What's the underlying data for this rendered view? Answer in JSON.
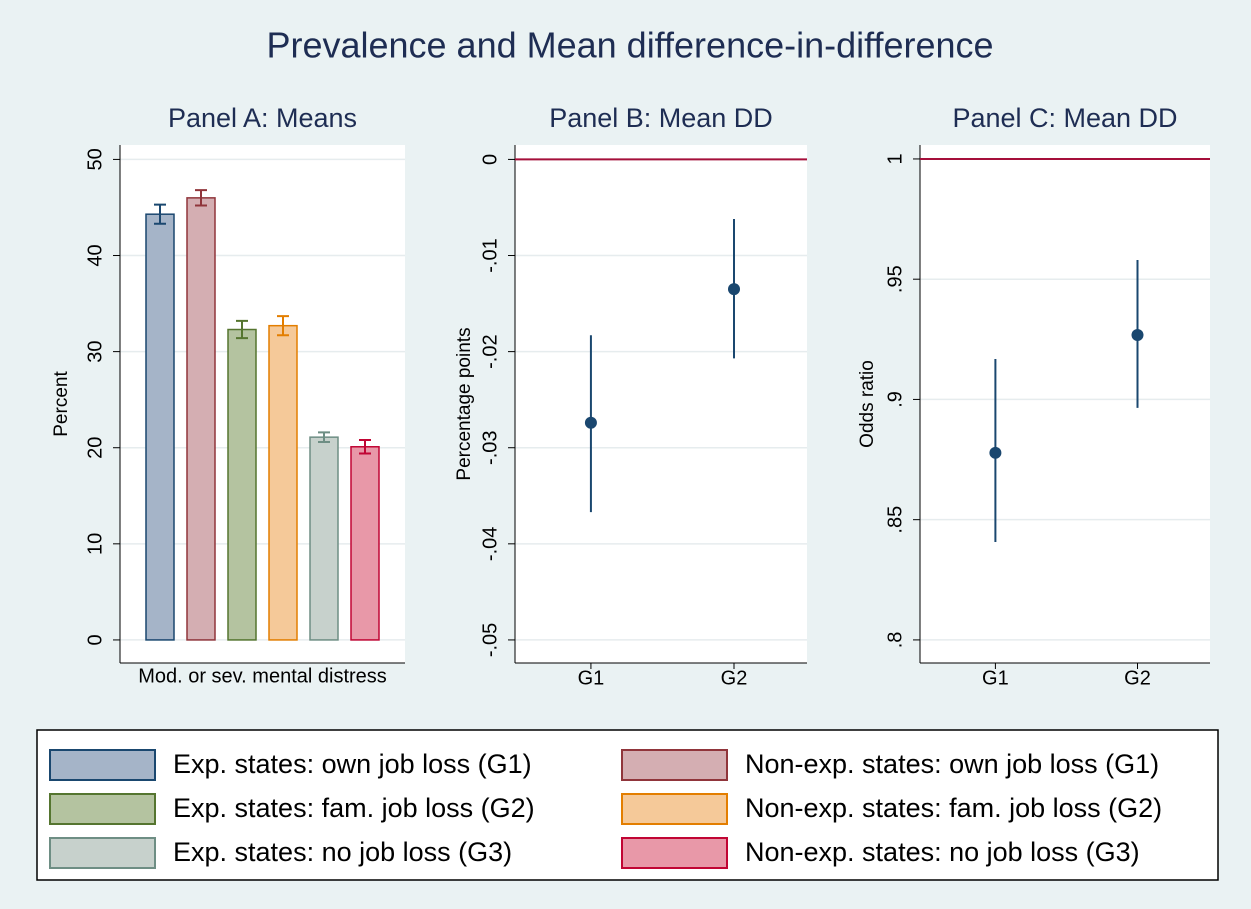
{
  "title": "Prevalence and Mean difference-in-difference",
  "chart_data": [
    {
      "type": "bar",
      "title": "Panel A: Means",
      "ylabel": "Percent",
      "categories": [
        "Mod. or sev. mental distress"
      ],
      "series": [
        {
          "name": "Exp. states: own job loss (G1)",
          "color": "#a5b4c8",
          "edgecolor": "#1a476f",
          "values": [
            44.3
          ],
          "errors": [
            1.0
          ]
        },
        {
          "name": "Non-exp. states: own job loss (G1)",
          "color": "#d4aeb2",
          "edgecolor": "#90353b",
          "values": [
            46.0
          ],
          "errors": [
            0.8
          ]
        },
        {
          "name": "Exp. states: fam. job loss (G2)",
          "color": "#b4c3a0",
          "edgecolor": "#55752f",
          "values": [
            32.3
          ],
          "errors": [
            0.9
          ]
        },
        {
          "name": "Non-exp. states: fam. job loss (G2)",
          "color": "#f5c999",
          "edgecolor": "#e37e00",
          "values": [
            32.7
          ],
          "errors": [
            1.0
          ]
        },
        {
          "name": "Exp. states: no job loss (G3)",
          "color": "#c7d1cc",
          "edgecolor": "#6e8e84",
          "values": [
            21.1
          ],
          "errors": [
            0.5
          ]
        },
        {
          "name": "Non-exp. states: no job loss (G3)",
          "color": "#e898a8",
          "edgecolor": "#c10534",
          "values": [
            20.1
          ],
          "errors": [
            0.7
          ]
        }
      ],
      "ylim": [
        -2.4,
        51.5
      ],
      "yticks": [
        0,
        10,
        20,
        30,
        40,
        50
      ],
      "grid": true,
      "legend": "bottom"
    },
    {
      "type": "errorbar",
      "title": "Panel B: Mean DD",
      "ylabel": "Percentage points",
      "categories": [
        "G1",
        "G2"
      ],
      "values": [
        -0.0274,
        -0.0135
      ],
      "lower": [
        -0.0367,
        -0.0207
      ],
      "upper": [
        -0.0183,
        -0.0062
      ],
      "color": "#1a476f",
      "refline": 0,
      "refline_color": "#a50f3a",
      "ylim": [
        -0.0524,
        0.0015
      ],
      "yticks": [
        {
          "value": -0.05,
          "label": "-.05"
        },
        {
          "value": -0.04,
          "label": "-.04"
        },
        {
          "value": -0.03,
          "label": "-.03"
        },
        {
          "value": -0.02,
          "label": "-.02"
        },
        {
          "value": -0.01,
          "label": "-.01"
        },
        0
      ],
      "grid": true
    },
    {
      "type": "errorbar",
      "title": "Panel C: Mean DD",
      "ylabel": "Odds ratio",
      "categories": [
        "G1",
        "G2"
      ],
      "values": [
        0.8778,
        0.9268
      ],
      "lower": [
        0.8407,
        0.8965
      ],
      "upper": [
        0.9168,
        0.958
      ],
      "color": "#1a476f",
      "refline": 1,
      "refline_color": "#a50f3a",
      "ylim": [
        0.7904,
        1.0058
      ],
      "yticks": [
        {
          "value": 0.8,
          "label": ".8"
        },
        {
          "value": 0.85,
          "label": ".85"
        },
        {
          "value": 0.9,
          "label": ".9"
        },
        {
          "value": 0.95,
          "label": ".95"
        },
        1
      ],
      "grid": true
    }
  ]
}
